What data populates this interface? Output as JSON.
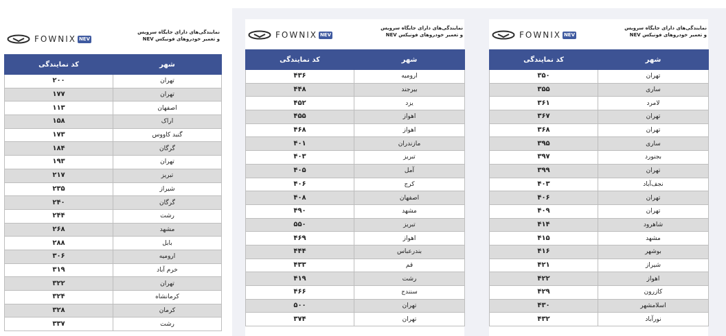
{
  "brand": {
    "name": "FOWNIX",
    "badge": "NEV"
  },
  "title": {
    "line1": "نمایندگی‌های دارای جایگاه سرویس",
    "line2": "و تعمیر خودروهای فونیکس NEV"
  },
  "headers": {
    "code": "کد نمایندگی",
    "city": "شهر"
  },
  "tables": [
    {
      "rows": [
        {
          "code": "۲۰۰",
          "city": "تهران"
        },
        {
          "code": "۱۷۷",
          "city": "تهران"
        },
        {
          "code": "۱۱۳",
          "city": "اصفهان"
        },
        {
          "code": "۱۵۸",
          "city": "اراک"
        },
        {
          "code": "۱۷۳",
          "city": "گنبد کاووس"
        },
        {
          "code": "۱۸۴",
          "city": "گرگان"
        },
        {
          "code": "۱۹۳",
          "city": "تهران"
        },
        {
          "code": "۲۱۷",
          "city": "تبریز"
        },
        {
          "code": "۲۳۵",
          "city": "شیراز"
        },
        {
          "code": "۲۴۰",
          "city": "گرگان"
        },
        {
          "code": "۲۴۴",
          "city": "رشت"
        },
        {
          "code": "۲۶۸",
          "city": "مشهد"
        },
        {
          "code": "۲۸۸",
          "city": "بابل"
        },
        {
          "code": "۳۰۶",
          "city": "ارومیه"
        },
        {
          "code": "۳۱۹",
          "city": "خرم آباد"
        },
        {
          "code": "۳۲۲",
          "city": "تهران"
        },
        {
          "code": "۳۲۴",
          "city": "کرمانشاه"
        },
        {
          "code": "۳۲۸",
          "city": "کرمان"
        },
        {
          "code": "۳۳۷",
          "city": "رشت"
        }
      ]
    },
    {
      "rows": [
        {
          "code": "۴۳۶",
          "city": "ارومیه"
        },
        {
          "code": "۴۴۸",
          "city": "بیرجند"
        },
        {
          "code": "۴۵۲",
          "city": "یزد"
        },
        {
          "code": "۴۵۵",
          "city": "اهواز"
        },
        {
          "code": "۴۶۸",
          "city": "اهواز"
        },
        {
          "code": "۴۰۱",
          "city": "مازندران"
        },
        {
          "code": "۴۰۳",
          "city": "تبریز"
        },
        {
          "code": "۴۰۵",
          "city": "آمل"
        },
        {
          "code": "۴۰۶",
          "city": "کرج"
        },
        {
          "code": "۴۰۸",
          "city": "اصفهان"
        },
        {
          "code": "۴۹۰",
          "city": "مشهد"
        },
        {
          "code": "۵۵۰",
          "city": "تبریز"
        },
        {
          "code": "۴۶۹",
          "city": "اهواز"
        },
        {
          "code": "۴۴۴",
          "city": "بندرعباس"
        },
        {
          "code": "۴۳۳",
          "city": "قم"
        },
        {
          "code": "۴۱۹",
          "city": "رشت"
        },
        {
          "code": "۴۶۶",
          "city": "سنندج"
        },
        {
          "code": "۵۰۰",
          "city": "تهران"
        },
        {
          "code": "۳۷۴",
          "city": "تهران"
        }
      ]
    },
    {
      "rows": [
        {
          "code": "۳۵۰",
          "city": "تهران"
        },
        {
          "code": "۳۵۵",
          "city": "ساری"
        },
        {
          "code": "۳۶۱",
          "city": "لامرد"
        },
        {
          "code": "۳۶۷",
          "city": "تهران"
        },
        {
          "code": "۳۶۸",
          "city": "تهران"
        },
        {
          "code": "۳۹۵",
          "city": "ساری"
        },
        {
          "code": "۳۹۷",
          "city": "بجنورد"
        },
        {
          "code": "۳۹۹",
          "city": "تهران"
        },
        {
          "code": "۴۰۳",
          "city": "نجف‌آباد"
        },
        {
          "code": "۴۰۶",
          "city": "تهران"
        },
        {
          "code": "۴۰۹",
          "city": "تهران"
        },
        {
          "code": "۴۱۴",
          "city": "شاهرود"
        },
        {
          "code": "۴۱۵",
          "city": "مشهد"
        },
        {
          "code": "۴۱۶",
          "city": "بوشهر"
        },
        {
          "code": "۴۲۱",
          "city": "شیراز"
        },
        {
          "code": "۴۲۲",
          "city": "اهواز"
        },
        {
          "code": "۴۲۹",
          "city": "کازرون"
        },
        {
          "code": "۴۳۰",
          "city": "اسلامشهر"
        },
        {
          "code": "۴۳۲",
          "city": "نورآباد"
        }
      ]
    }
  ]
}
